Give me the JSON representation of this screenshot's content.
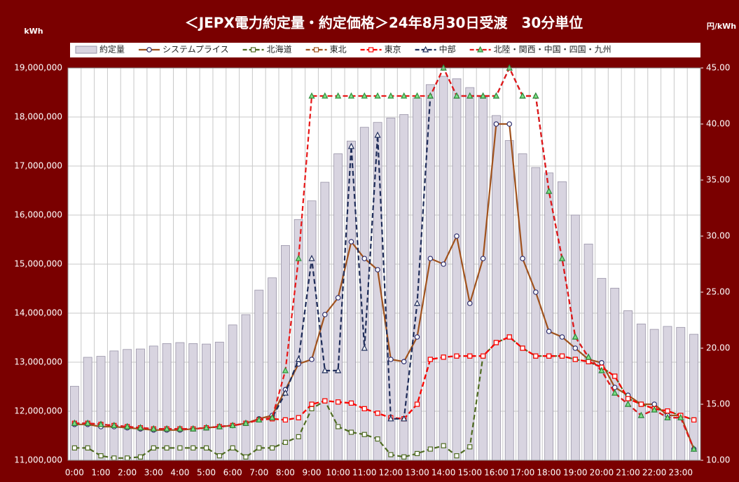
{
  "chart_data": {
    "type": "bar-line",
    "title": "＜JEPX電力約定量・約定価格＞24年8月30日受渡　30分単位",
    "y_label": "kWh",
    "y2_label": "円/kWh",
    "categories": [
      "0:00",
      null,
      "1:00",
      null,
      "2:00",
      null,
      "3:00",
      null,
      "4:00",
      null,
      "5:00",
      null,
      "6:00",
      null,
      "7:00",
      null,
      "8:00",
      null,
      "9:00",
      null,
      "10:00",
      null,
      "11:00",
      null,
      "12:00",
      null,
      "13:00",
      null,
      "14:00",
      null,
      "15:00",
      null,
      "16:00",
      null,
      "17:00",
      null,
      "18:00",
      null,
      "19:00",
      null,
      "20:00",
      null,
      "21:00",
      null,
      "22:00",
      null,
      "23:00",
      null
    ],
    "bars": {
      "name": "約定量",
      "color": "#d8d4e0",
      "values": [
        12510000,
        13100000,
        13120000,
        13230000,
        13260000,
        13270000,
        13330000,
        13380000,
        13400000,
        13380000,
        13370000,
        13410000,
        13760000,
        13970000,
        14470000,
        14720000,
        15380000,
        15910000,
        16290000,
        16670000,
        17250000,
        17510000,
        17790000,
        17890000,
        17980000,
        18050000,
        18390000,
        18660000,
        18830000,
        18780000,
        18600000,
        18410000,
        18030000,
        17520000,
        17250000,
        16970000,
        16860000,
        16680000,
        16000000,
        15410000,
        14710000,
        14510000,
        14050000,
        13780000,
        13670000,
        13730000,
        13710000,
        13570000
      ]
    },
    "series": [
      {
        "name": "システムプライス",
        "color": "#a0521d",
        "dash": false,
        "marker": "circle",
        "marker_fill": "#ffffff",
        "marker_stroke": "#2a2a6a",
        "axis": "y2",
        "values": [
          13.2,
          13.2,
          13.0,
          13.0,
          12.9,
          12.8,
          12.7,
          12.7,
          12.7,
          12.8,
          12.9,
          13.0,
          13.1,
          13.3,
          13.7,
          14.0,
          16.3,
          18.6,
          19.0,
          23.0,
          24.5,
          29.5,
          28.0,
          27.0,
          19.0,
          18.8,
          21.0,
          28.0,
          27.5,
          30.0,
          24.0,
          28.0,
          40.0,
          40.0,
          28.0,
          25.0,
          21.5,
          21.0,
          20.0,
          19.0,
          18.7,
          16.5,
          15.8,
          15.0,
          15.0,
          14.0,
          14.0,
          11.0
        ]
      },
      {
        "name": "北海道",
        "color": "#4f6b22",
        "dash": true,
        "marker": "square",
        "marker_fill": "#ffffff",
        "marker_stroke": "#4f6b22",
        "axis": "y2",
        "values": [
          11.1,
          11.1,
          10.4,
          10.2,
          10.2,
          10.3,
          11.1,
          11.1,
          11.1,
          11.1,
          11.1,
          10.4,
          11.1,
          10.3,
          11.1,
          11.1,
          11.6,
          12.1,
          14.6,
          15.3,
          13.0,
          12.5,
          12.3,
          11.9,
          10.5,
          10.3,
          10.6,
          11.0,
          11.3,
          10.4,
          11.2,
          19.3,
          20.5,
          21.0,
          20.0,
          19.3,
          19.3,
          19.3,
          19.0,
          18.8,
          18.3,
          17.5,
          15.5,
          15.0,
          14.6,
          14.4,
          14.0,
          13.6
        ]
      },
      {
        "name": "東北",
        "color": "#a0521d",
        "dash": true,
        "marker": "square",
        "marker_fill": "#ffffff",
        "marker_stroke": "#a0521d",
        "axis": "y2",
        "values": [
          13.3,
          13.3,
          13.2,
          13.1,
          13.0,
          12.9,
          12.8,
          12.8,
          12.8,
          12.8,
          12.9,
          13.0,
          13.1,
          13.3,
          13.6,
          13.7,
          13.6,
          13.8,
          15.0,
          15.3,
          15.2,
          15.1,
          14.6,
          14.2,
          13.8,
          13.7,
          15.0,
          19.0,
          19.2,
          19.3,
          19.3,
          19.3,
          20.5,
          21.0,
          20.0,
          19.3,
          19.3,
          19.3,
          19.0,
          18.8,
          18.3,
          17.5,
          15.5,
          15.0,
          14.6,
          14.4,
          14.0,
          13.6
        ]
      },
      {
        "name": "東京",
        "color": "#ff0000",
        "dash": true,
        "marker": "square",
        "marker_fill": "#ffffff",
        "marker_stroke": "#ff0000",
        "axis": "y2",
        "values": [
          13.3,
          13.3,
          13.2,
          13.1,
          13.0,
          12.9,
          12.8,
          12.8,
          12.8,
          12.8,
          12.9,
          13.0,
          13.1,
          13.3,
          13.6,
          13.7,
          13.6,
          13.8,
          15.0,
          15.3,
          15.2,
          15.1,
          14.6,
          14.2,
          13.8,
          13.7,
          15.0,
          19.0,
          19.2,
          19.3,
          19.3,
          19.3,
          20.5,
          21.0,
          20.0,
          19.3,
          19.3,
          19.3,
          19.0,
          18.8,
          18.3,
          17.5,
          15.5,
          15.0,
          14.6,
          14.4,
          14.0,
          13.6
        ]
      },
      {
        "name": "中部",
        "color": "#1f2d5a",
        "dash": true,
        "marker": "triangle",
        "marker_fill": "#ffffff",
        "marker_stroke": "#1f2d5a",
        "axis": "y2",
        "values": [
          13.3,
          13.3,
          13.2,
          13.1,
          13.0,
          12.9,
          12.8,
          12.8,
          12.8,
          12.8,
          12.9,
          13.0,
          13.1,
          13.3,
          13.6,
          13.8,
          16.0,
          19.0,
          28.0,
          18.0,
          18.0,
          38.0,
          20.0,
          39.0,
          13.7,
          13.7,
          24.0,
          42.5,
          45.0,
          42.5,
          42.5,
          42.5,
          42.5,
          45.0,
          42.5,
          42.5,
          34.0,
          28.0,
          21.0,
          19.2,
          18.0,
          16.0,
          15.0,
          14.0,
          14.5,
          13.8,
          13.8,
          11.0
        ]
      },
      {
        "name": "北陸・関西・中国・四国・九州",
        "color": "#e81818",
        "dash": true,
        "marker": "triangle",
        "marker_fill": "#7fe08a",
        "marker_stroke": "#2f8f3a",
        "axis": "y2",
        "values": [
          13.3,
          13.3,
          13.2,
          13.1,
          13.0,
          12.9,
          12.8,
          12.8,
          12.8,
          12.8,
          12.9,
          13.0,
          13.1,
          13.3,
          13.6,
          13.8,
          18.0,
          28.0,
          42.5,
          42.5,
          42.5,
          42.5,
          42.5,
          42.5,
          42.5,
          42.5,
          42.5,
          42.5,
          45.0,
          42.5,
          42.5,
          42.5,
          42.5,
          45.0,
          42.5,
          42.5,
          34.0,
          28.0,
          21.0,
          19.2,
          18.0,
          16.0,
          15.0,
          14.0,
          14.5,
          13.8,
          13.8,
          11.0
        ]
      }
    ],
    "ylim": [
      11000000,
      19000000
    ],
    "yticks": [
      {
        "value": 11000000,
        "label": "11,000,000"
      },
      {
        "value": 12000000,
        "label": "12,000,000"
      },
      {
        "value": 13000000,
        "label": "13,000,000"
      },
      {
        "value": 14000000,
        "label": "14,000,000"
      },
      {
        "value": 15000000,
        "label": "15,000,000"
      },
      {
        "value": 16000000,
        "label": "16,000,000"
      },
      {
        "value": 17000000,
        "label": "17,000,000"
      },
      {
        "value": 18000000,
        "label": "18,000,000"
      },
      {
        "value": 19000000,
        "label": "19,000,000"
      }
    ],
    "y2lim": [
      10,
      45
    ],
    "y2ticks": [
      {
        "value": 10,
        "label": "10.00"
      },
      {
        "value": 15,
        "label": "15.00"
      },
      {
        "value": 20,
        "label": "20.00"
      },
      {
        "value": 25,
        "label": "25.00"
      },
      {
        "value": 30,
        "label": "30.00"
      },
      {
        "value": 35,
        "label": "35.00"
      },
      {
        "value": 40,
        "label": "40.00"
      },
      {
        "value": 45,
        "label": "45.00"
      }
    ],
    "grid": true
  }
}
